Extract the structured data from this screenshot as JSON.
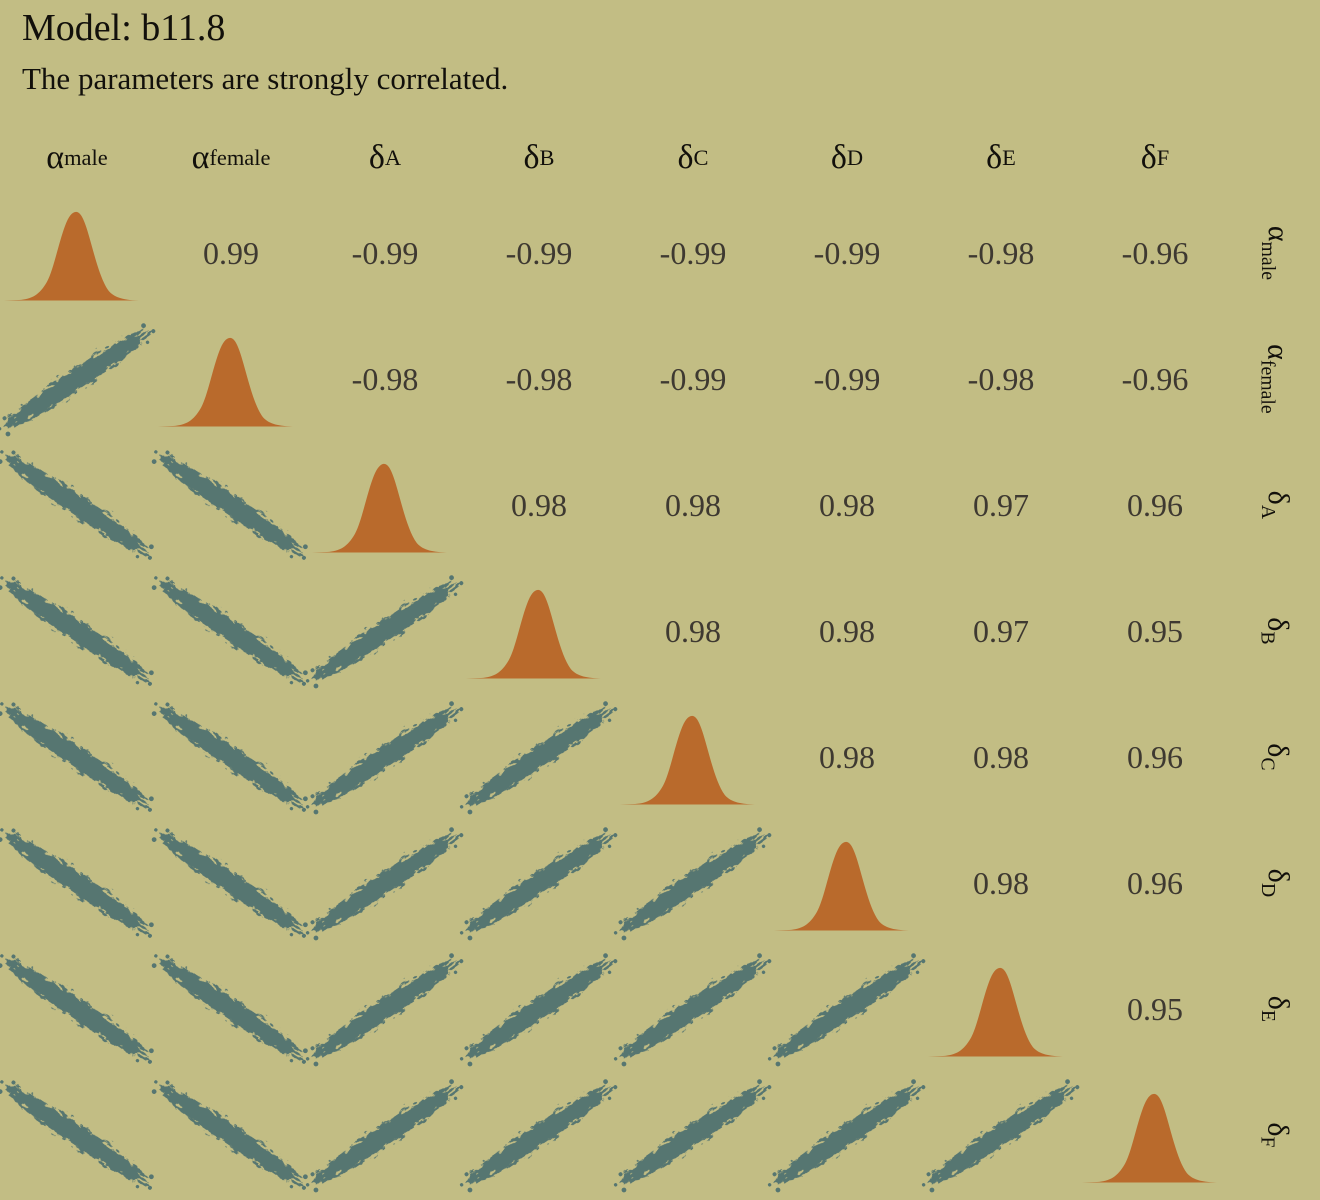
{
  "chart_data": {
    "type": "scatter",
    "subtype": "pairs_correlation_matrix",
    "title": "Model: b11.8",
    "subtitle": "The parameters are strongly correlated.",
    "panels": {
      "diagonal": "posterior density curve",
      "lower_triangle": "pairwise posterior sample scatterplot",
      "upper_triangle": "correlation coefficient"
    },
    "legend": "none",
    "grid": false,
    "axes": "none",
    "parameters": [
      {
        "id": "alpha-male",
        "symbol": "α",
        "subscript": "male",
        "label": "α[male]"
      },
      {
        "id": "alpha-female",
        "symbol": "α",
        "subscript": "female",
        "label": "α[female]"
      },
      {
        "id": "delta-A",
        "symbol": "δ",
        "subscript": "A",
        "label": "δ[A]"
      },
      {
        "id": "delta-B",
        "symbol": "δ",
        "subscript": "B",
        "label": "δ[B]"
      },
      {
        "id": "delta-C",
        "symbol": "δ",
        "subscript": "C",
        "label": "δ[C]"
      },
      {
        "id": "delta-D",
        "symbol": "δ",
        "subscript": "D",
        "label": "δ[D]"
      },
      {
        "id": "delta-E",
        "symbol": "δ",
        "subscript": "E",
        "label": "δ[E]"
      },
      {
        "id": "delta-F",
        "symbol": "δ",
        "subscript": "F",
        "label": "δ[F]"
      }
    ],
    "correlations": [
      [
        null,
        0.99,
        -0.99,
        -0.99,
        -0.99,
        -0.99,
        -0.98,
        -0.96
      ],
      [
        null,
        null,
        -0.98,
        -0.98,
        -0.99,
        -0.99,
        -0.98,
        -0.96
      ],
      [
        null,
        null,
        null,
        0.98,
        0.98,
        0.98,
        0.97,
        0.96
      ],
      [
        null,
        null,
        null,
        null,
        0.98,
        0.98,
        0.97,
        0.95
      ],
      [
        null,
        null,
        null,
        null,
        null,
        0.98,
        0.98,
        0.96
      ],
      [
        null,
        null,
        null,
        null,
        null,
        null,
        0.98,
        0.96
      ],
      [
        null,
        null,
        null,
        null,
        null,
        null,
        null,
        0.95
      ],
      [
        null,
        null,
        null,
        null,
        null,
        null,
        null,
        null
      ]
    ],
    "colors": {
      "background": "#c2bd84",
      "density_fill": "#b96a2c",
      "scatter_fill": "#567671",
      "heading_text": "#12100b",
      "correlation_text": "#3e3931"
    }
  }
}
